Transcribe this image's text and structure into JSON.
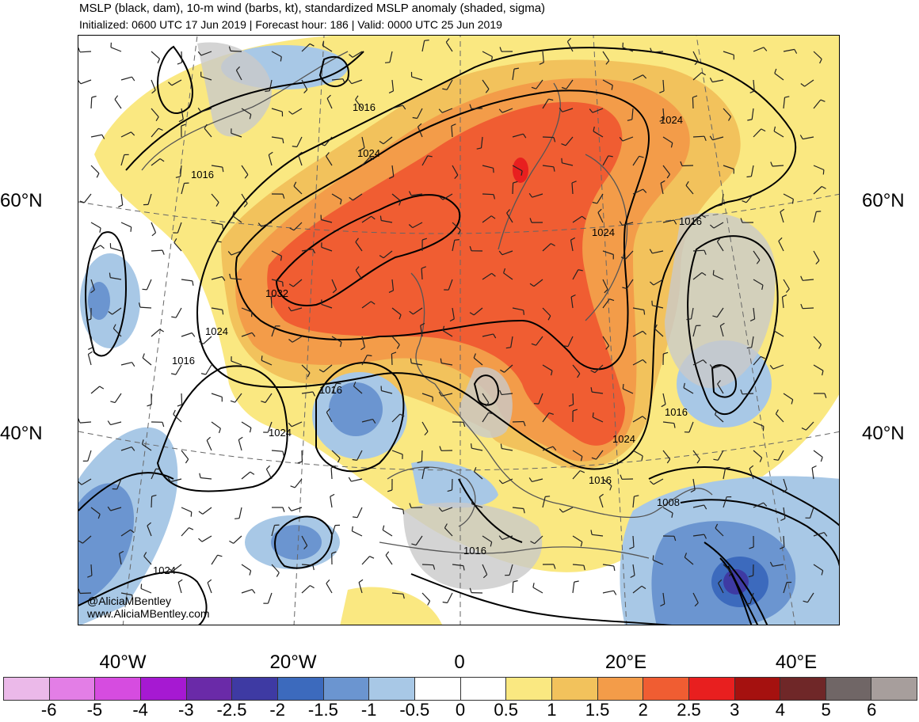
{
  "header": {
    "title": "MSLP (black, dam), 10-m wind (barbs, kt), standardized MSLP anomaly (shaded, sigma)",
    "subtitle": "Initialized: 0600 UTC 17 Jun 2019 | Forecast hour: 186 | Valid: 0000 UTC 25 Jun 2019"
  },
  "map": {
    "region": "North Atlantic and Europe",
    "lat_labels": {
      "north": "60°N",
      "south": "40°N"
    },
    "lon_labels": [
      "40°W",
      "20°W",
      "0",
      "20°E",
      "40°E"
    ],
    "isobar_labels": [
      "1016",
      "1024",
      "1016",
      "1024",
      "1024",
      "1016",
      "1032",
      "1024",
      "1016",
      "1016",
      "1024",
      "1024",
      "1016",
      "1016",
      "1008",
      "1016",
      "1024"
    ],
    "credit": {
      "handle": "@AliciaMBentley",
      "site": "www.AliciaMBentley.com"
    }
  },
  "colorbar": {
    "ticks": [
      "-6",
      "-5",
      "-4",
      "-3",
      "-2.5",
      "-2",
      "-1.5",
      "-1",
      "-0.5",
      "0",
      "0.5",
      "1",
      "1.5",
      "2",
      "2.5",
      "3",
      "4",
      "5",
      "6"
    ],
    "colors": [
      "#ebb9e9",
      "#e37ee6",
      "#d64ce0",
      "#a619d2",
      "#6a2aa8",
      "#3e3aa3",
      "#3c6abd",
      "#6b95d0",
      "#a8c8e6",
      "#ffffff",
      "#ffffff",
      "#fae881",
      "#f2c25c",
      "#f39c49",
      "#f05d32",
      "#e81f1f",
      "#a5110f",
      "#6f2728",
      "#706666",
      "#a79e9c"
    ]
  }
}
